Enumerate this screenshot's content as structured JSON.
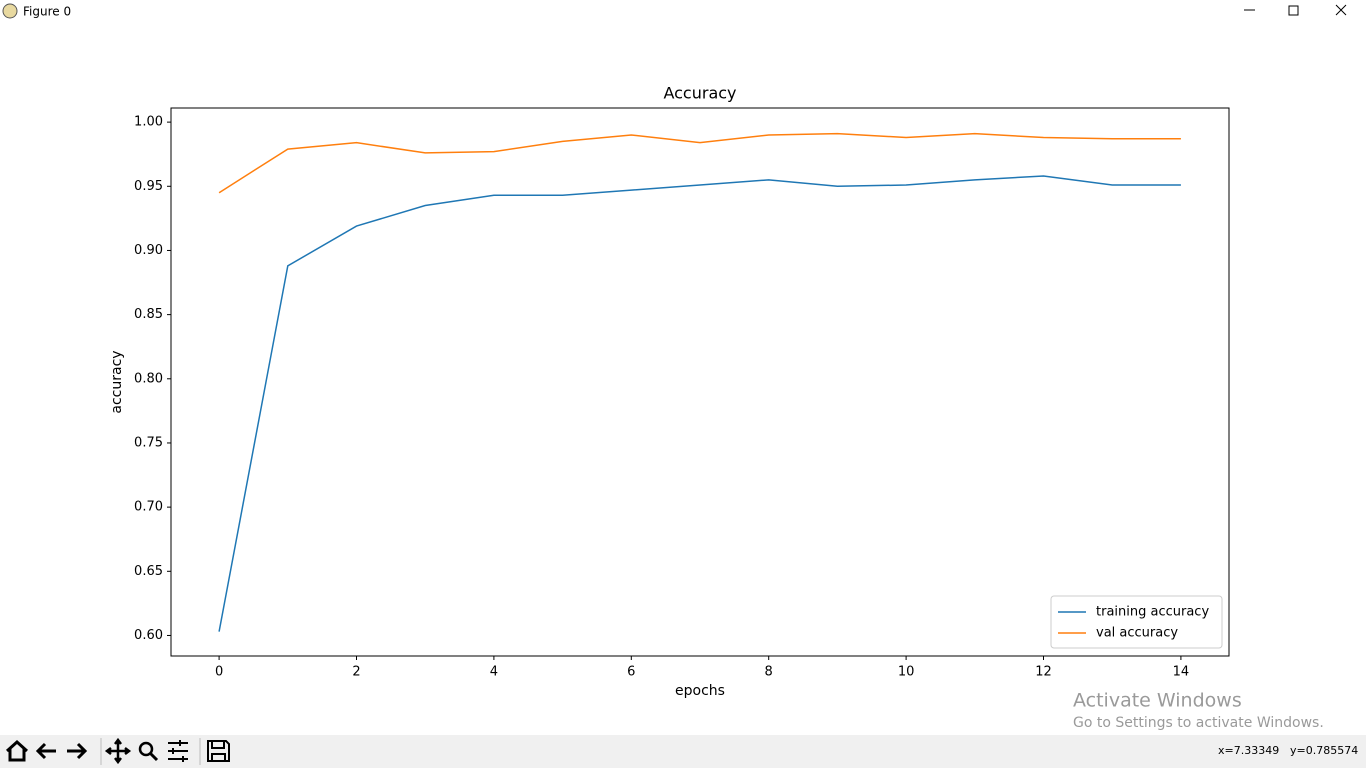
{
  "window": {
    "title": "Figure 0"
  },
  "status": {
    "x": "x=7.33349",
    "y": "y=0.785574"
  },
  "watermark": {
    "title": "Activate Windows",
    "subtitle": "Go to Settings to activate Windows."
  },
  "chart_data": {
    "type": "line",
    "title": "Accuracy",
    "x_label": "epochs",
    "y_label": "accuracy",
    "x": [
      0,
      1,
      2,
      3,
      4,
      5,
      6,
      7,
      8,
      9,
      10,
      11,
      12,
      13,
      14
    ],
    "series": [
      {
        "name": "training accuracy",
        "color": "#1f77b4",
        "values": [
          0.603,
          0.888,
          0.919,
          0.935,
          0.943,
          0.943,
          0.947,
          0.951,
          0.955,
          0.95,
          0.951,
          0.955,
          0.958,
          0.951,
          0.951
        ]
      },
      {
        "name": "val accuracy",
        "color": "#ff7f0e",
        "values": [
          0.945,
          0.979,
          0.984,
          0.976,
          0.977,
          0.985,
          0.99,
          0.984,
          0.99,
          0.991,
          0.988,
          0.991,
          0.988,
          0.987,
          0.987
        ]
      }
    ],
    "xlim": [
      -0.7,
      14.7
    ],
    "xticks": [
      0,
      2,
      4,
      6,
      8,
      10,
      12,
      14
    ],
    "ylim": [
      0.584,
      1.011
    ],
    "yticks": [
      {
        "value": 0.6,
        "label": "0.60"
      },
      0.65,
      {
        "value": 0.7,
        "label": "0.70"
      },
      0.75,
      {
        "value": 0.8,
        "label": "0.80"
      },
      0.85,
      {
        "value": 0.9,
        "label": "0.90"
      },
      0.95,
      {
        "value": 1,
        "label": "1.00"
      }
    ],
    "legend": "lower right"
  }
}
